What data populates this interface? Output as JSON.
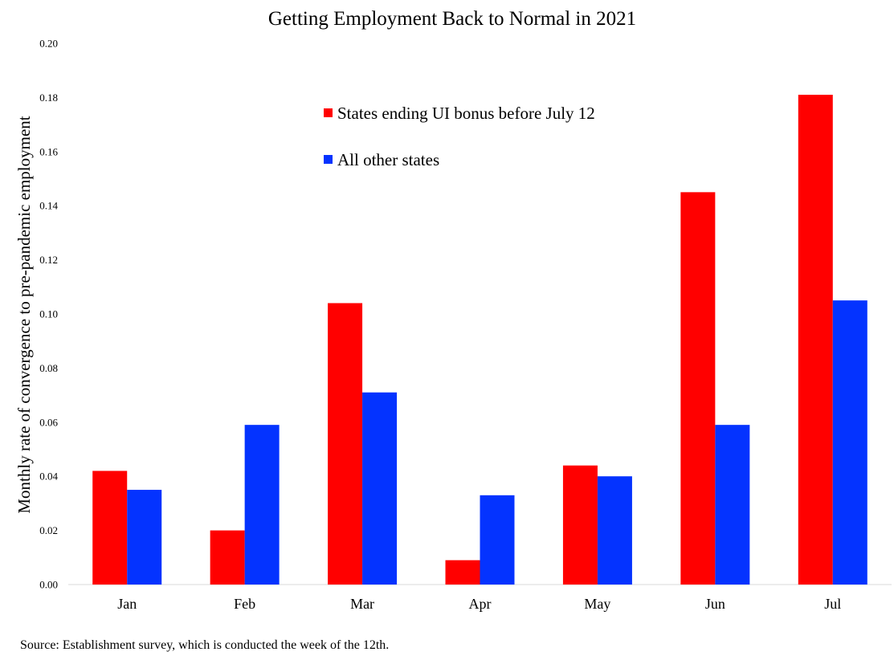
{
  "chart_data": {
    "type": "bar",
    "title": "Getting Employment Back to Normal in 2021",
    "ylabel": "Monthly rate of convergence to pre-pandemic employment",
    "xlabel": "",
    "categories": [
      "Jan",
      "Feb",
      "Mar",
      "Apr",
      "May",
      "Jun",
      "Jul"
    ],
    "ylim": [
      0,
      0.2
    ],
    "yticks": [
      "0.00",
      "0.02",
      "0.04",
      "0.06",
      "0.08",
      "0.10",
      "0.12",
      "0.14",
      "0.16",
      "0.18",
      "0.20"
    ],
    "grid": false,
    "legend_position": "top-center",
    "series": [
      {
        "name": "States ending UI bonus before July 12",
        "color": "#ff0000",
        "values": [
          0.042,
          0.02,
          0.104,
          0.009,
          0.044,
          0.145,
          0.181
        ]
      },
      {
        "name": "All other states",
        "color": "#0433ff",
        "values": [
          0.035,
          0.059,
          0.071,
          0.033,
          0.04,
          0.059,
          0.105
        ]
      }
    ],
    "note": "Source: Establishment survey, which is conducted the week of the 12th."
  }
}
